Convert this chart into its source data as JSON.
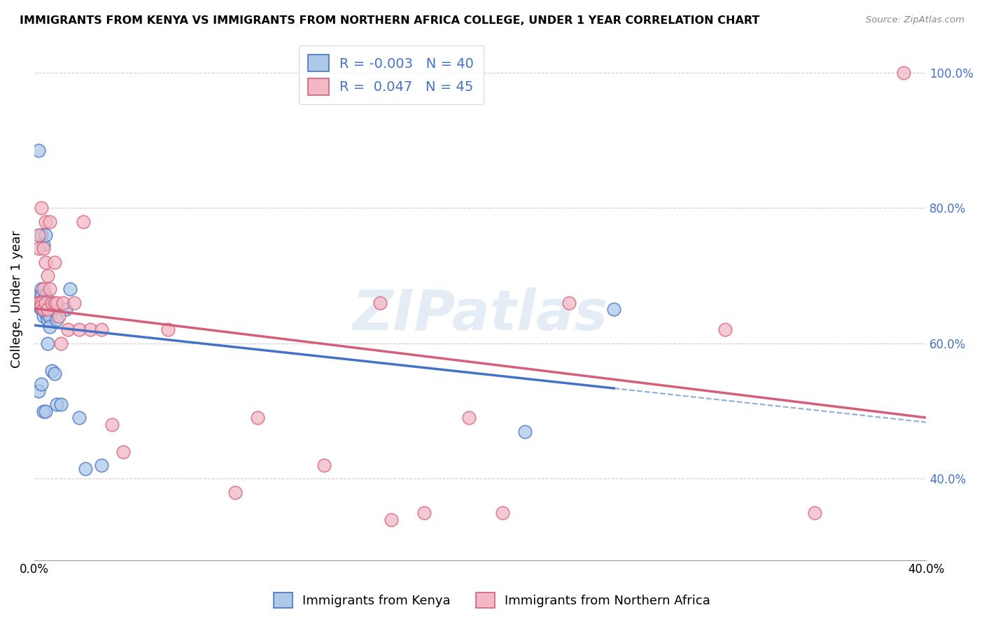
{
  "title": "IMMIGRANTS FROM KENYA VS IMMIGRANTS FROM NORTHERN AFRICA COLLEGE, UNDER 1 YEAR CORRELATION CHART",
  "source": "Source: ZipAtlas.com",
  "ylabel": "College, Under 1 year",
  "xlim": [
    0.0,
    0.4
  ],
  "ylim": [
    0.28,
    1.05
  ],
  "watermark": "ZIPatlas",
  "kenya_color": "#adc8e8",
  "northern_africa_color": "#f2b8c6",
  "kenya_line_color": "#4472c4",
  "northern_africa_line_color": "#d45f7a",
  "background_color": "#ffffff",
  "kenya_x": [
    0.001,
    0.001,
    0.002,
    0.002,
    0.002,
    0.002,
    0.003,
    0.003,
    0.003,
    0.003,
    0.003,
    0.004,
    0.004,
    0.004,
    0.004,
    0.005,
    0.005,
    0.005,
    0.005,
    0.006,
    0.006,
    0.006,
    0.007,
    0.007,
    0.008,
    0.009,
    0.01,
    0.01,
    0.012,
    0.014,
    0.016,
    0.02,
    0.023,
    0.03,
    0.002,
    0.003,
    0.004,
    0.005,
    0.22,
    0.26
  ],
  "kenya_y": [
    0.66,
    0.665,
    0.67,
    0.655,
    0.66,
    0.885,
    0.76,
    0.68,
    0.67,
    0.66,
    0.65,
    0.745,
    0.66,
    0.655,
    0.64,
    0.76,
    0.67,
    0.66,
    0.645,
    0.64,
    0.635,
    0.6,
    0.64,
    0.625,
    0.56,
    0.555,
    0.635,
    0.51,
    0.51,
    0.65,
    0.68,
    0.49,
    0.415,
    0.42,
    0.53,
    0.54,
    0.5,
    0.5,
    0.47,
    0.65
  ],
  "northern_africa_x": [
    0.001,
    0.002,
    0.002,
    0.002,
    0.003,
    0.003,
    0.003,
    0.004,
    0.004,
    0.004,
    0.005,
    0.005,
    0.005,
    0.006,
    0.006,
    0.007,
    0.007,
    0.008,
    0.009,
    0.009,
    0.01,
    0.011,
    0.012,
    0.013,
    0.015,
    0.018,
    0.02,
    0.022,
    0.025,
    0.03,
    0.035,
    0.04,
    0.06,
    0.09,
    0.1,
    0.13,
    0.155,
    0.16,
    0.175,
    0.195,
    0.21,
    0.24,
    0.31,
    0.35,
    0.39
  ],
  "northern_africa_y": [
    0.66,
    0.76,
    0.74,
    0.66,
    0.8,
    0.66,
    0.655,
    0.74,
    0.68,
    0.65,
    0.78,
    0.72,
    0.66,
    0.7,
    0.65,
    0.78,
    0.68,
    0.66,
    0.72,
    0.66,
    0.66,
    0.64,
    0.6,
    0.66,
    0.62,
    0.66,
    0.62,
    0.78,
    0.62,
    0.62,
    0.48,
    0.44,
    0.62,
    0.38,
    0.49,
    0.42,
    0.66,
    0.34,
    0.35,
    0.49,
    0.35,
    0.66,
    0.62,
    0.35,
    1.0
  ],
  "kenya_trend": [
    -0.003
  ],
  "northern_trend": [
    0.047
  ],
  "legend_R": [
    "-0.003",
    "0.047"
  ],
  "legend_N": [
    "40",
    "45"
  ],
  "legend_labels": [
    "Immigrants from Kenya",
    "Immigrants from Northern Africa"
  ],
  "ytick_vals": [
    0.4,
    0.6,
    0.8,
    1.0
  ],
  "ytick_labels": [
    "40.0%",
    "60.0%",
    "80.0%",
    "100.0%"
  ],
  "xtick_vals": [
    0.0,
    0.08,
    0.16,
    0.24,
    0.32,
    0.4
  ],
  "xtick_labels": [
    "0.0%",
    "",
    "",
    "",
    "",
    "40.0%"
  ]
}
